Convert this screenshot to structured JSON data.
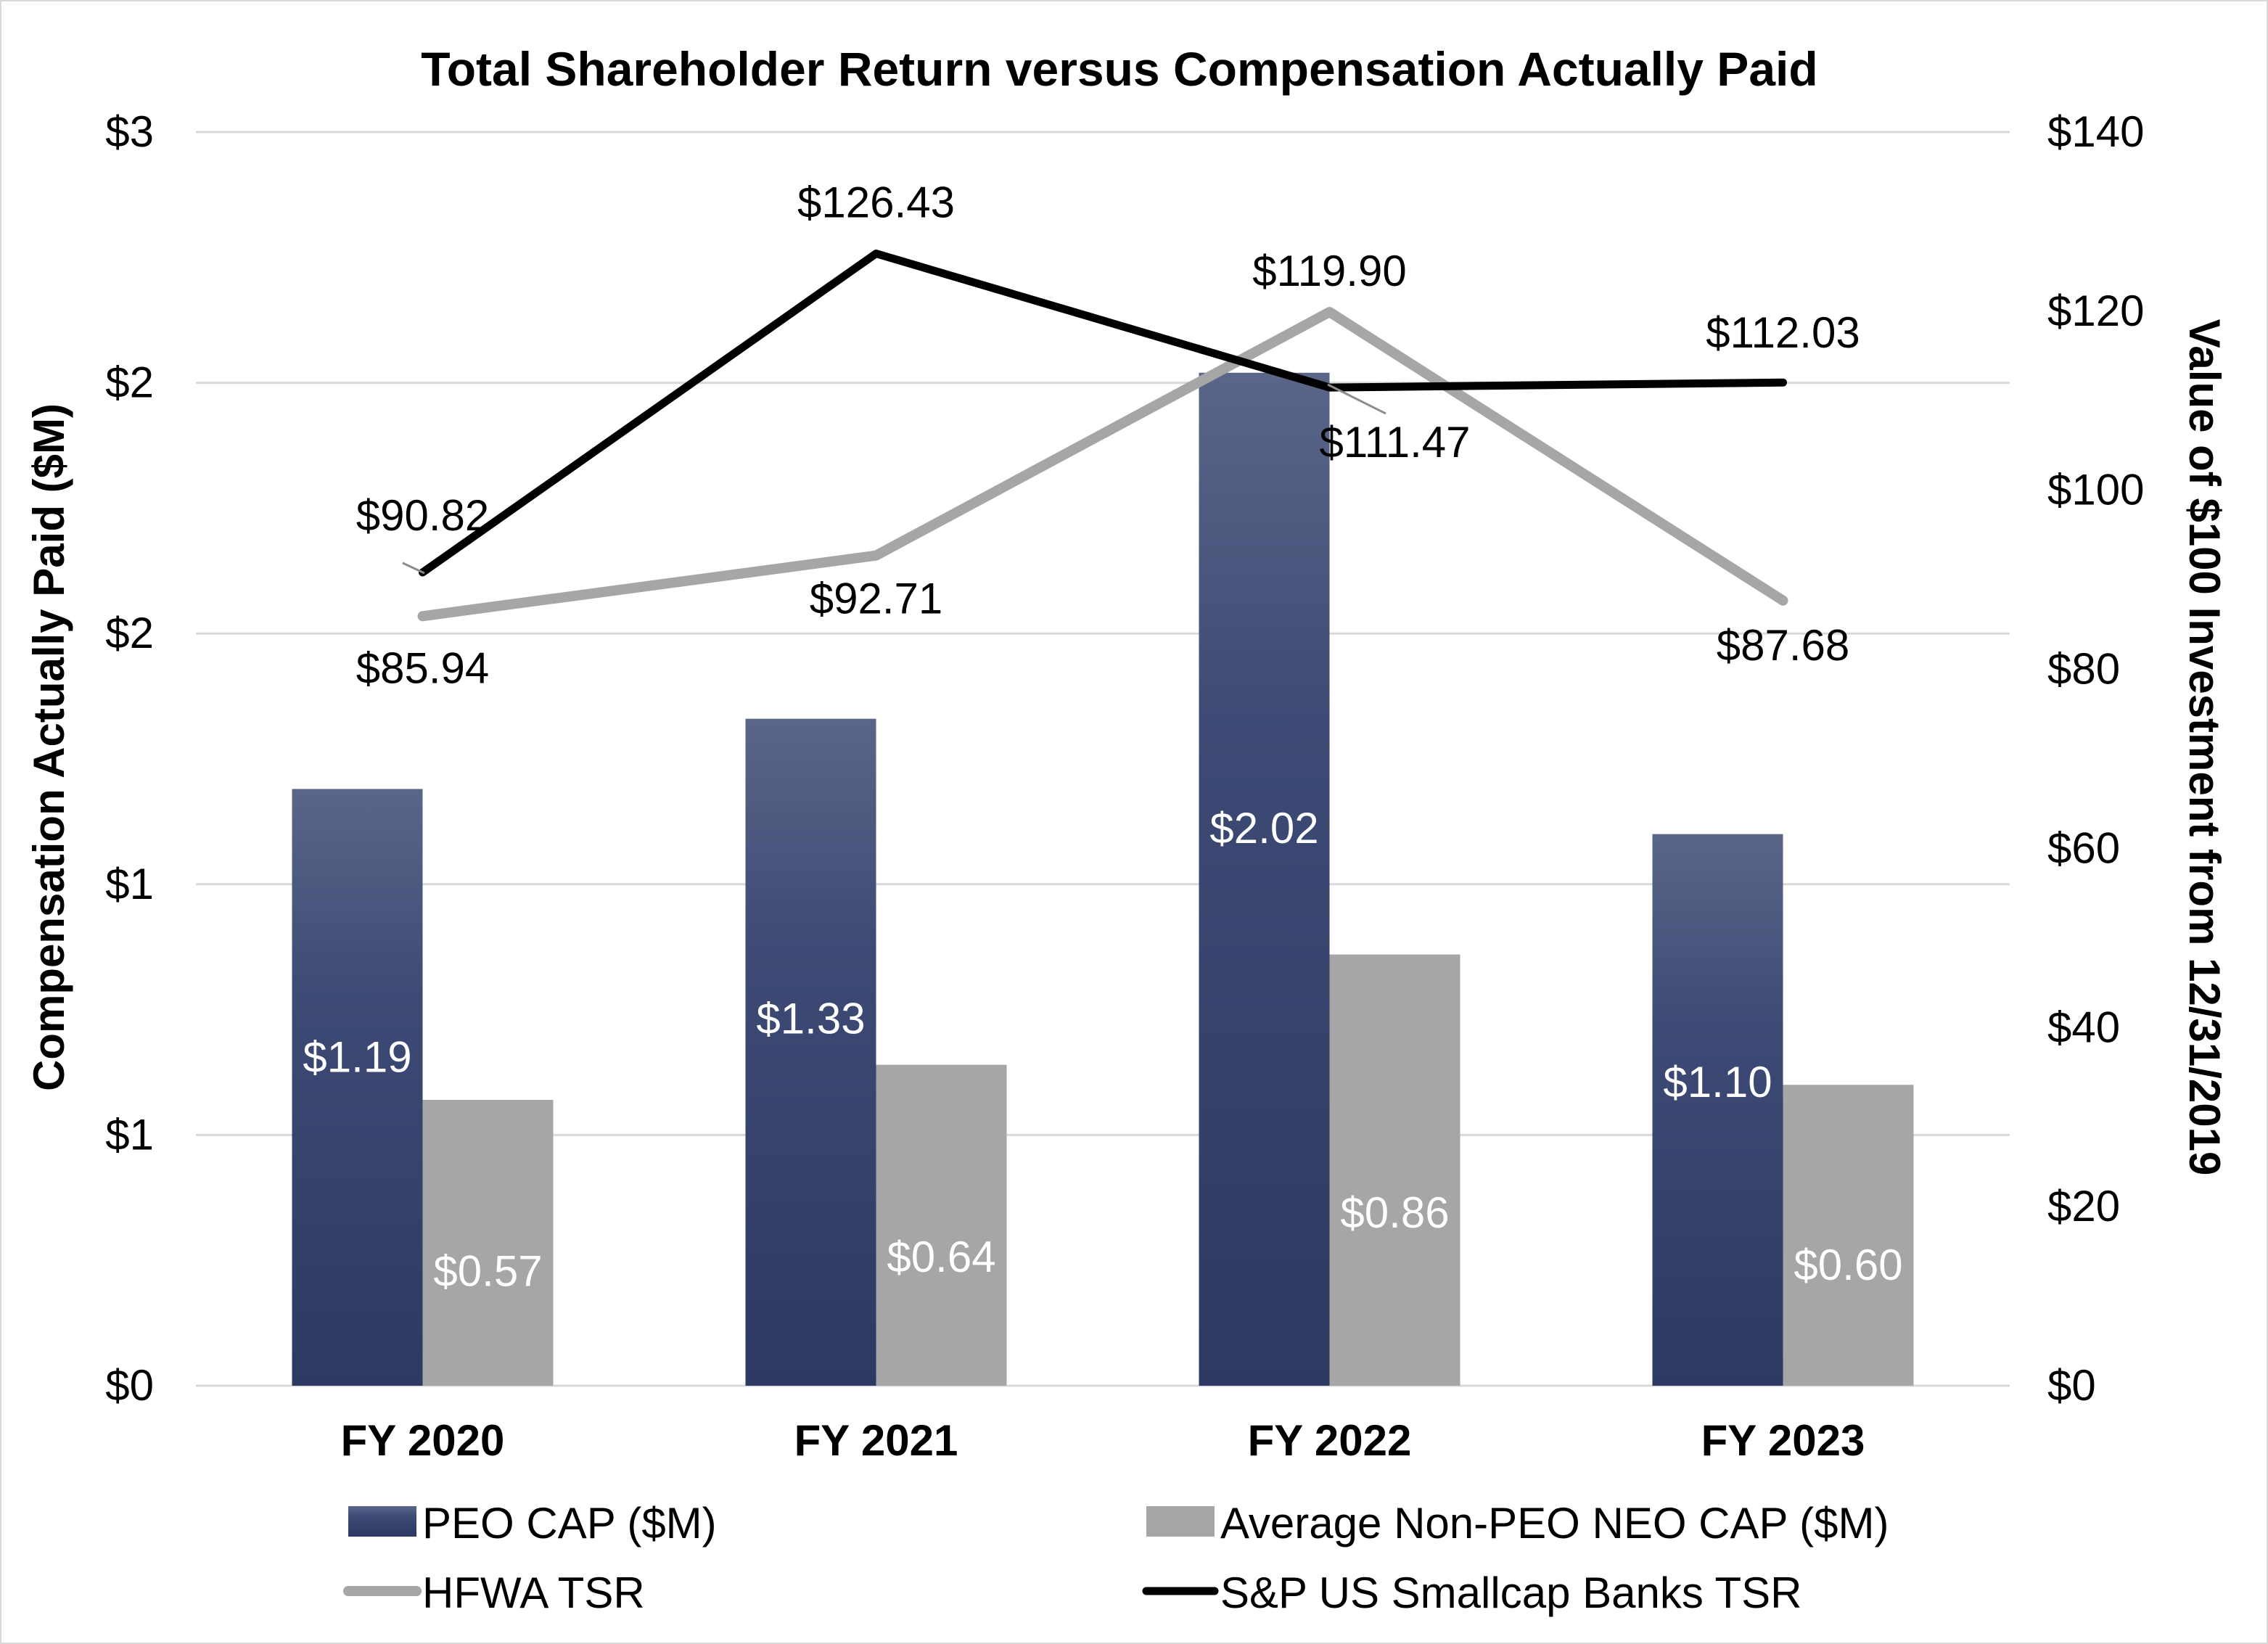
{
  "chart_data": {
    "type": "bar+line",
    "title": "Total Shareholder Return versus Compensation Actually Paid",
    "categories": [
      "FY 2020",
      "FY 2021",
      "FY 2022",
      "FY 2023"
    ],
    "y_left": {
      "label": "Compensation Actually Paid ($M)",
      "range": [
        0,
        2.5
      ],
      "ticks": [
        0,
        0.5,
        1.0,
        1.5,
        2.0,
        2.5
      ],
      "tick_labels": [
        "$0",
        "$1",
        "$1",
        "$2",
        "$2",
        "$3"
      ]
    },
    "y_right": {
      "label": "Value of $100 Investment from 12/31/2019",
      "range": [
        0,
        140
      ],
      "ticks": [
        0,
        20,
        40,
        60,
        80,
        100,
        120,
        140
      ],
      "tick_labels": [
        "$0",
        "$20",
        "$40",
        "$60",
        "$80",
        "$100",
        "$120",
        "$140"
      ]
    },
    "bars": [
      {
        "name": "PEO CAP ($M)",
        "axis": "left",
        "values": [
          1.19,
          1.33,
          2.02,
          1.1
        ],
        "labels": [
          "$1.19",
          "$1.33",
          "$2.02",
          "$1.10"
        ],
        "color": "#3b4a75"
      },
      {
        "name": "Average Non-PEO NEO CAP ($M)",
        "axis": "left",
        "values": [
          0.57,
          0.64,
          0.86,
          0.6
        ],
        "labels": [
          "$0.57",
          "$0.64",
          "$0.86",
          "$0.60"
        ],
        "color": "#a6a6a6"
      }
    ],
    "lines": [
      {
        "name": "HFWA TSR",
        "axis": "right",
        "values": [
          85.94,
          92.71,
          119.9,
          87.68
        ],
        "labels": [
          "$85.94",
          "$92.71",
          "$119.90",
          "$87.68"
        ],
        "color": "#a6a6a6"
      },
      {
        "name": "S&P US Smallcap Banks TSR",
        "axis": "right",
        "values": [
          90.82,
          126.43,
          111.47,
          112.03
        ],
        "labels": [
          "$90.82",
          "$126.43",
          "$111.47",
          "$112.03"
        ],
        "color": "#000000"
      }
    ],
    "legend": [
      "PEO CAP ($M)",
      "Average Non-PEO NEO CAP ($M)",
      "HFWA TSR",
      "S&P US Smallcap Banks TSR"
    ],
    "legend_position": "bottom",
    "grid": true
  }
}
